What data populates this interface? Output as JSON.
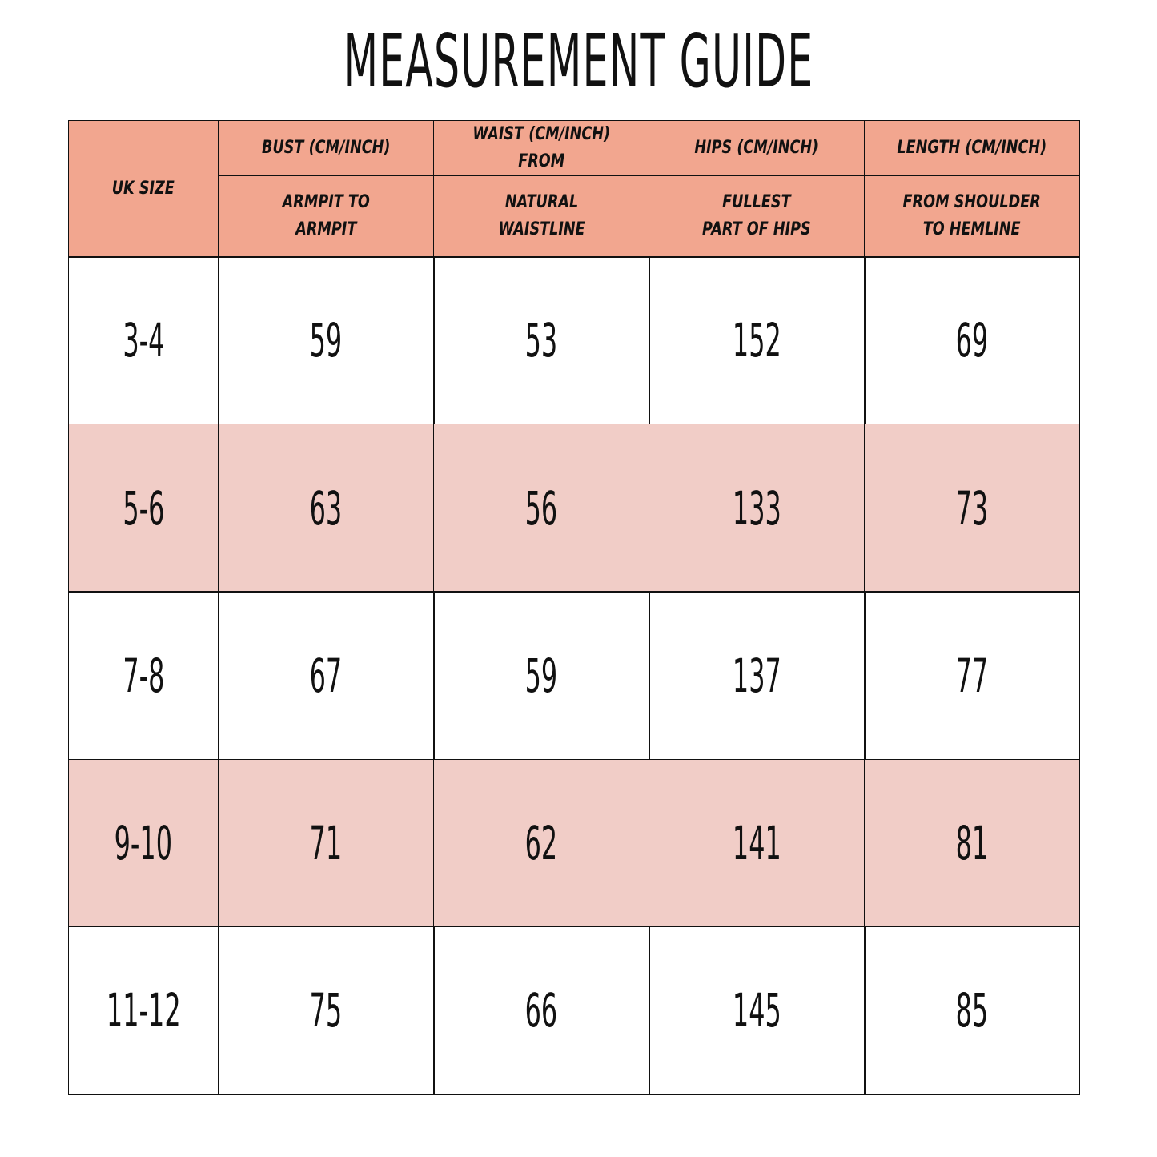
{
  "header": {
    "title": "MEASUREMENT GUIDE"
  },
  "table": {
    "header_top": [
      "UK SIZE",
      "BUST (CM/INCH)",
      "WAIST (CM/INCH) FROM",
      "HIPS (CM/INCH)",
      "LENGTH (CM/INCH)"
    ],
    "header_bottom": [
      [
        "ARMPIT TO",
        "ARMPIT"
      ],
      [
        "NATURAL",
        "WAISTLINE"
      ],
      [
        "FULLEST",
        "PART OF HIPS"
      ],
      [
        "FROM SHOULDER",
        "TO HEMLINE"
      ]
    ],
    "rows": [
      [
        "3-4",
        59,
        53,
        152,
        69
      ],
      [
        "5-6",
        63,
        56,
        133,
        73
      ],
      [
        "7-8",
        67,
        59,
        137,
        77
      ],
      [
        "9-10",
        71,
        62,
        141,
        81
      ],
      [
        "11-12",
        75,
        66,
        145,
        85
      ]
    ]
  }
}
